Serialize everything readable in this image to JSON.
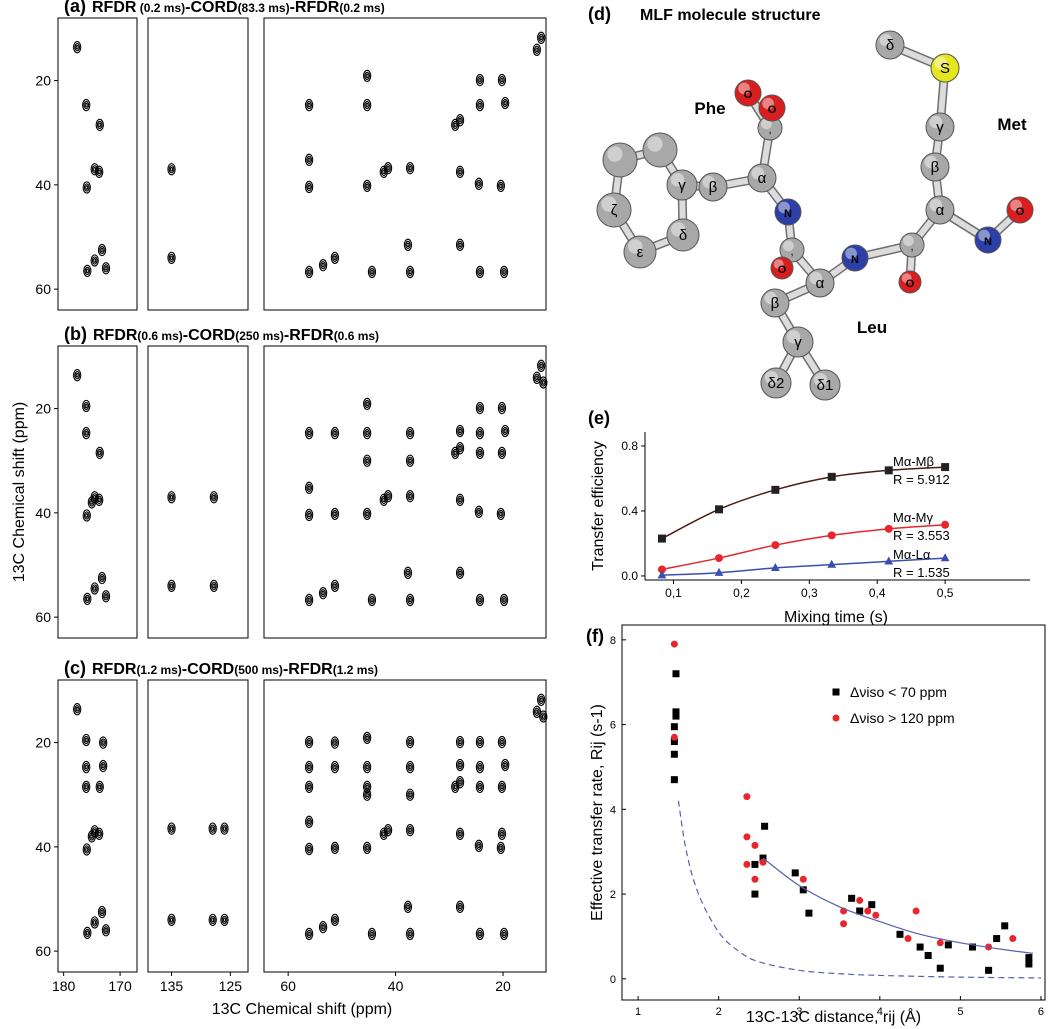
{
  "chart_data": [
    {
      "type": "spectrum",
      "label": "(a)",
      "title_parts": [
        "RFDR",
        " (0.2 ms)",
        "-CORD",
        "(83.3 ms)",
        "-RFDR",
        "(0.2 ms)"
      ],
      "ylim": [
        8,
        64
      ],
      "yticks": [
        20,
        40,
        60
      ],
      "panels": [
        {
          "xlim": [
            181,
            167
          ],
          "x": [
            177.6,
            176,
            173.6,
            174.5,
            173.7,
            175.9,
            175.8,
            174.5,
            173.2,
            172.5
          ],
          "values": [
            13.6,
            24.7,
            28.5,
            37,
            37.5,
            40.5,
            56.5,
            54.5,
            52.5,
            56
          ]
        },
        {
          "xlim": [
            139,
            122
          ],
          "x": [
            135,
            135
          ],
          "values": [
            37,
            54
          ]
        },
        {
          "xlim": [
            64.5,
            12
          ],
          "x": [
            56.1,
            56.1,
            56.1,
            56.1,
            53.5,
            51.3,
            45.3,
            45.3,
            45.3,
            44.4,
            42.2,
            41.4,
            37.7,
            37.3,
            37.3,
            28.9,
            28.0,
            28.0,
            28.0,
            24.3,
            24.3,
            24.5,
            24.3,
            20.2,
            19.6,
            20.4,
            19.8,
            13.7,
            12.9
          ],
          "values": [
            24.7,
            35.2,
            40.4,
            56.7,
            55.4,
            54,
            19.1,
            24.7,
            40.2,
            56.7,
            37.5,
            36.8,
            51.5,
            56.7,
            36.8,
            28.5,
            27.6,
            37.5,
            51.5,
            19.9,
            24.7,
            39.8,
            56.7,
            19.9,
            24.3,
            40.2,
            56.7,
            14.1,
            11.8
          ]
        }
      ]
    },
    {
      "type": "spectrum",
      "label": "(b)",
      "title_parts": [
        "RFDR",
        "(0.6 ms)",
        "-CORD",
        "(250 ms)",
        "-RFDR",
        "(0.6 ms)"
      ],
      "ylabel": "13C Chemical shift (ppm)",
      "ylim": [
        8,
        64
      ],
      "yticks": [
        20,
        40,
        60
      ],
      "panels": [
        {
          "xlim": [
            181,
            167
          ],
          "x": [
            177.6,
            176,
            176,
            173.6,
            174.5,
            173.7,
            175.9,
            175,
            175.8,
            174.5,
            173.2,
            172.5
          ],
          "values": [
            13.6,
            19.5,
            24.7,
            28.5,
            37,
            37.5,
            40.5,
            38,
            56.5,
            54.5,
            52.5,
            56
          ]
        },
        {
          "xlim": [
            139,
            122
          ],
          "x": [
            135,
            127.8,
            135,
            127.8
          ],
          "values": [
            37,
            37,
            54,
            54
          ]
        },
        {
          "xlim": [
            64.5,
            12
          ],
          "x": [
            56.1,
            56.1,
            56.1,
            56.1,
            53.5,
            51.3,
            51.3,
            51.3,
            45.3,
            45.3,
            45.3,
            45.3,
            44.4,
            42.2,
            41.4,
            37.7,
            37.3,
            37.3,
            37.3,
            37.3,
            28.9,
            28.0,
            28.0,
            28.0,
            28.0,
            24.3,
            24.3,
            24.3,
            24.5,
            24.3,
            20.2,
            19.6,
            20.2,
            20.4,
            19.8,
            13.7,
            12.9,
            12.5
          ],
          "values": [
            24.7,
            35.2,
            40.4,
            56.7,
            55.4,
            54,
            24.7,
            40.2,
            19.1,
            24.7,
            30,
            40.2,
            56.7,
            37.5,
            36.8,
            51.5,
            56.7,
            36.8,
            24.7,
            30,
            28.5,
            27.6,
            37.5,
            51.5,
            24.3,
            19.9,
            24.7,
            28.5,
            39.8,
            56.7,
            19.9,
            24.3,
            28.5,
            40.2,
            56.7,
            14.1,
            11.8,
            15
          ]
        }
      ]
    },
    {
      "type": "spectrum",
      "label": "(c)",
      "title_parts": [
        "RFDR",
        "(1.2 ms)",
        "-CORD",
        "(500 ms)",
        "-RFDR",
        "(1.2 ms)"
      ],
      "xlabel": "13C Chemical shift (ppm)",
      "ylim": [
        8,
        64
      ],
      "yticks": [
        20,
        40,
        60
      ],
      "panels": [
        {
          "xlim": [
            181,
            167
          ],
          "xticks": [
            180,
            170
          ],
          "x": [
            177.6,
            176,
            176,
            173,
            173,
            176,
            173.6,
            174.5,
            173.7,
            175.9,
            175,
            175.8,
            174.5,
            173.2,
            172.5
          ],
          "values": [
            13.6,
            19.5,
            24.7,
            20,
            24.5,
            28.5,
            28.5,
            37,
            37.5,
            40.5,
            38,
            56.5,
            54.5,
            52.5,
            56
          ]
        },
        {
          "xlim": [
            139,
            122
          ],
          "xticks": [
            135,
            125
          ],
          "x": [
            135,
            126,
            128,
            135,
            126,
            128
          ],
          "values": [
            36.5,
            36.5,
            36.5,
            54,
            54,
            54
          ]
        },
        {
          "xlim": [
            64.5,
            12
          ],
          "xticks": [
            60,
            40,
            20
          ],
          "x": [
            56.1,
            56.1,
            56.1,
            56.1,
            56.1,
            56.1,
            53.5,
            51.3,
            51.3,
            51.3,
            51.3,
            45.3,
            45.3,
            45.3,
            45.3,
            45.3,
            44.4,
            42.2,
            41.4,
            37.7,
            37.3,
            37.3,
            37.3,
            37.3,
            37.3,
            28.9,
            28.0,
            28.0,
            28.0,
            28.0,
            28.0,
            24.3,
            24.3,
            24.3,
            24.5,
            24.3,
            20.2,
            19.6,
            20.2,
            20.4,
            20.2,
            19.8,
            13.7,
            12.9,
            12.5
          ],
          "values": [
            19.9,
            24.7,
            28.5,
            35.2,
            40.4,
            56.7,
            55.4,
            54,
            20,
            24.7,
            40.2,
            19.1,
            24.7,
            28.5,
            30,
            40.2,
            56.7,
            37.5,
            36.8,
            51.5,
            56.7,
            36.8,
            19.9,
            24.7,
            30,
            28.5,
            27.6,
            37.5,
            51.5,
            24.3,
            19.9,
            19.9,
            24.7,
            28.5,
            39.8,
            56.7,
            19.9,
            24.3,
            28.5,
            40.2,
            37.5,
            56.7,
            14.1,
            11.8,
            15
          ]
        }
      ]
    },
    {
      "type": "molecule",
      "label": "(d)",
      "title": "MLF molecule structure",
      "groups": [
        "Phe",
        "Met",
        "Leu"
      ],
      "atoms": [
        {
          "label": null,
          "color": "#a8a8a8"
        },
        {
          "label": null,
          "color": "#a8a8a8"
        },
        {
          "label": "γ",
          "color": "#a8a8a8"
        },
        {
          "label": "δ",
          "color": "#a8a8a8"
        },
        {
          "label": "ε",
          "color": "#a8a8a8"
        },
        {
          "label": "ζ",
          "color": "#a8a8a8"
        },
        {
          "label": "β",
          "color": "#a8a8a8"
        },
        {
          "label": "α",
          "color": "#a8a8a8"
        },
        {
          "label": ",",
          "color": "#a8a8a8"
        },
        {
          "label": "O",
          "color": "#d81e1e"
        },
        {
          "label": "O",
          "color": "#d81e1e"
        },
        {
          "label": "N",
          "color": "#2b3fa6"
        },
        {
          "label": ",",
          "color": "#a8a8a8"
        },
        {
          "label": "O",
          "color": "#d81e1e"
        },
        {
          "label": "α",
          "color": "#a8a8a8"
        },
        {
          "label": "N",
          "color": "#2b3fa6"
        },
        {
          "label": ",",
          "color": "#a8a8a8"
        },
        {
          "label": "O",
          "color": "#d81e1e"
        },
        {
          "label": "β",
          "color": "#a8a8a8"
        },
        {
          "label": "γ",
          "color": "#a8a8a8"
        },
        {
          "label": "δ2",
          "color": "#a8a8a8"
        },
        {
          "label": "δ1",
          "color": "#a8a8a8"
        },
        {
          "label": "α",
          "color": "#a8a8a8"
        },
        {
          "label": "β",
          "color": "#a8a8a8"
        },
        {
          "label": "γ",
          "color": "#a8a8a8"
        },
        {
          "label": "S",
          "color": "#e6e61e"
        },
        {
          "label": "δ",
          "color": "#a8a8a8"
        },
        {
          "label": "N",
          "color": "#2b3fa6"
        },
        {
          "label": "O",
          "color": "#d81e1e"
        }
      ]
    },
    {
      "type": "line",
      "label": "(e)",
      "xlabel": "Mixing time (s)",
      "ylabel": "Transfer efficiency",
      "x": [
        0.083,
        0.167,
        0.25,
        0.333,
        0.417,
        0.5
      ],
      "xlim": [
        0.058,
        0.625
      ],
      "ylim": [
        -0.025,
        0.886
      ],
      "xticks": [
        {
          "value": 0.1,
          "label": "0,1"
        },
        {
          "value": 0.2,
          "label": "0,2"
        },
        {
          "value": 0.3,
          "label": "0,3"
        },
        {
          "value": 0.4,
          "label": "0,4"
        },
        {
          "value": 0.5,
          "label": "0,5"
        }
      ],
      "yticks": [
        {
          "value": 0,
          "label": "0.0"
        },
        {
          "value": 0.4,
          "label": "0.4"
        },
        {
          "value": 0.8,
          "label": "0.8"
        }
      ],
      "series": [
        {
          "name": "Mα-Mβ",
          "fit_label": "R = 5.912",
          "color": "#222222",
          "line_color": "#4a1d14",
          "marker": "square",
          "values": [
            0.23,
            0.41,
            0.53,
            0.61,
            0.65,
            0.67
          ]
        },
        {
          "name": "Mα-Mγ",
          "fit_label": "R = 3.553",
          "color": "#e8262b",
          "line_color": "#e8262b",
          "marker": "circle",
          "values": [
            0.04,
            0.11,
            0.19,
            0.25,
            0.29,
            0.315
          ]
        },
        {
          "name": "Mα-Lα",
          "fit_label": "R = 1.535",
          "color": "#3a4fb0",
          "line_color": "#3a4fb0",
          "marker": "triangle",
          "values": [
            0.005,
            0.02,
            0.05,
            0.07,
            0.09,
            0.11
          ]
        }
      ]
    },
    {
      "type": "scatter",
      "label": "(f)",
      "xlabel": "13C-13C distance, rij (Å)",
      "ylabel": "Effective transfer rate, Rij (s-1)",
      "xlim": [
        0.8,
        6.05
      ],
      "ylim": [
        -0.5,
        8.35
      ],
      "xticks": [
        1,
        2,
        3,
        4,
        5,
        6
      ],
      "yticks": [
        0,
        2,
        4,
        6,
        8
      ],
      "series": [
        {
          "name": "Δνiso < 70 ppm",
          "color": "#000000",
          "marker": "square",
          "x": [
            1.45,
            1.45,
            1.45,
            1.45,
            1.47,
            1.47,
            1.47,
            2.45,
            2.45,
            2.55,
            2.57,
            2.95,
            3.05,
            3.12,
            3.65,
            3.75,
            3.9,
            4.25,
            4.5,
            4.6,
            4.75,
            4.85,
            5.15,
            5.35,
            5.45,
            5.55,
            5.85,
            5.85
          ],
          "values": [
            4.7,
            5.3,
            5.6,
            5.95,
            6.2,
            6.3,
            7.2,
            2.0,
            2.7,
            2.85,
            3.6,
            2.5,
            2.1,
            1.55,
            1.9,
            1.6,
            1.75,
            1.05,
            0.75,
            0.55,
            0.25,
            0.8,
            0.75,
            0.2,
            0.95,
            1.25,
            0.5,
            0.35
          ]
        },
        {
          "name": "Δνiso > 120 ppm",
          "color": "#e8262b",
          "marker": "circle",
          "x": [
            1.45,
            1.45,
            2.35,
            2.35,
            2.35,
            2.45,
            2.45,
            2.55,
            3.05,
            3.55,
            3.55,
            3.75,
            3.85,
            3.95,
            4.35,
            4.45,
            4.75,
            5.35,
            5.65
          ],
          "values": [
            7.9,
            5.7,
            4.3,
            3.35,
            2.7,
            3.15,
            2.35,
            2.75,
            2.35,
            1.6,
            1.3,
            1.85,
            1.6,
            1.5,
            0.95,
            1.6,
            0.85,
            0.75,
            0.95
          ]
        },
        {
          "color": "#5560b0",
          "style": "solid",
          "x": [
            2.55,
            3,
            3.5,
            4,
            4.5,
            5,
            5.5,
            5.9
          ],
          "values": [
            2.85,
            2.2,
            1.7,
            1.35,
            1.05,
            0.85,
            0.7,
            0.6
          ]
        },
        {
          "color": "#5560b0",
          "style": "dashed",
          "x": [
            1.5,
            1.6,
            1.75,
            2,
            2.25,
            2.5,
            3,
            3.5,
            4,
            5,
            6
          ],
          "values": [
            4.2,
            3.0,
            2.0,
            1.1,
            0.65,
            0.4,
            0.2,
            0.12,
            0.08,
            0.04,
            0.02
          ]
        }
      ]
    }
  ]
}
